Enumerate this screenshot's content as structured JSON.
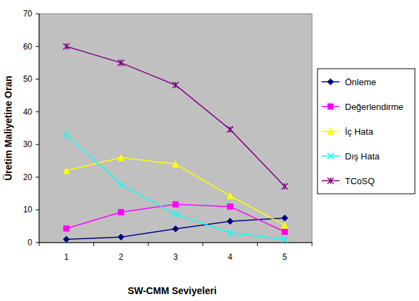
{
  "chart_data": {
    "type": "line",
    "x_label": "SW-CMM Seviyeleri",
    "y_label": "Üretim Maliyetine Oran",
    "categories": [
      "1",
      "2",
      "3",
      "4",
      "5"
    ],
    "series": [
      {
        "name": "Önleme",
        "color": "#000080",
        "marker": "diamond",
        "values": [
          1,
          1.7,
          4.2,
          6.5,
          7.5
        ]
      },
      {
        "name": "Değerlendirme",
        "color": "#ff00ff",
        "marker": "square",
        "values": [
          4.3,
          9.3,
          11.7,
          11,
          3.3
        ]
      },
      {
        "name": "İç Hata",
        "color": "#ffff00",
        "marker": "triangle",
        "values": [
          22,
          26,
          24,
          14.3,
          5.3
        ]
      },
      {
        "name": "Dış Hata",
        "color": "#00ffff",
        "marker": "x",
        "values": [
          33,
          17.8,
          8.7,
          3,
          1
        ]
      },
      {
        "name": "TCoSQ",
        "color": "#800080",
        "marker": "star",
        "values": [
          60,
          55,
          48.2,
          34.6,
          17.2
        ]
      }
    ],
    "ylim": [
      0,
      70
    ],
    "yticks": [
      0,
      10,
      20,
      30,
      40,
      50,
      60,
      70
    ],
    "grid": false,
    "legend": "right"
  }
}
